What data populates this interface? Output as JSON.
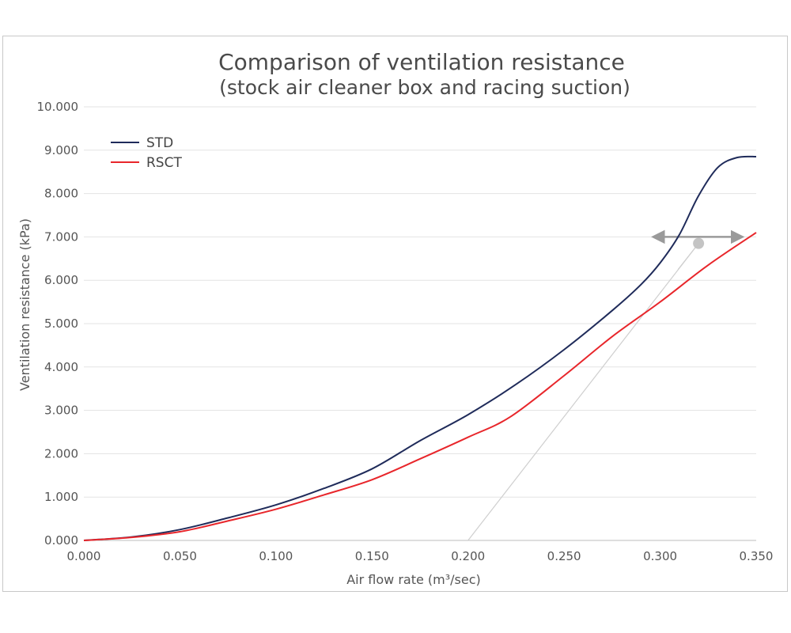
{
  "chart_data": {
    "type": "line",
    "title": "Comparison of ventilation resistance",
    "subtitle": "(stock air cleaner box and racing suction)",
    "xlabel": "Air flow rate (m³/sec)",
    "ylabel": "Ventilation resistance (kPa)",
    "xlim": [
      0,
      0.35
    ],
    "ylim": [
      0,
      10
    ],
    "x_ticks": [
      "0.000",
      "0.050",
      "0.100",
      "0.150",
      "0.200",
      "0.250",
      "0.300",
      "0.350"
    ],
    "y_ticks": [
      "0.000",
      "1.000",
      "2.000",
      "3.000",
      "4.000",
      "5.000",
      "6.000",
      "7.000",
      "8.000",
      "9.000",
      "10.000"
    ],
    "grid": "horizontal",
    "legend_position": "top-left",
    "series": [
      {
        "name": "STD",
        "color": "#1f2b5a",
        "x": [
          0,
          0.025,
          0.05,
          0.075,
          0.1,
          0.125,
          0.15,
          0.175,
          0.2,
          0.225,
          0.25,
          0.275,
          0.29,
          0.3,
          0.31,
          0.32,
          0.33,
          0.34,
          0.35
        ],
        "y": [
          0,
          0.08,
          0.25,
          0.52,
          0.82,
          1.2,
          1.65,
          2.3,
          2.9,
          3.6,
          4.4,
          5.3,
          5.9,
          6.4,
          7.05,
          7.95,
          8.6,
          8.83,
          8.85
        ]
      },
      {
        "name": "RSCT",
        "color": "#e8262b",
        "x": [
          0,
          0.025,
          0.05,
          0.075,
          0.1,
          0.125,
          0.15,
          0.175,
          0.2,
          0.222,
          0.25,
          0.275,
          0.3,
          0.325,
          0.35
        ],
        "y": [
          0,
          0.07,
          0.2,
          0.45,
          0.72,
          1.05,
          1.4,
          1.88,
          2.38,
          2.85,
          3.8,
          4.7,
          5.5,
          6.35,
          7.1
        ]
      }
    ],
    "annotation": {
      "description": "double-headed grey arrow between curves at about 7.000 kPa with callout line",
      "arrow_x_from": 0.3,
      "arrow_x_to": 0.345,
      "arrow_y": 7.0,
      "dot_x": 0.32,
      "dot_y": 6.85,
      "leader_to_x": 0.2,
      "leader_to_y": 0.0,
      "color": "#9a9a9a"
    }
  }
}
